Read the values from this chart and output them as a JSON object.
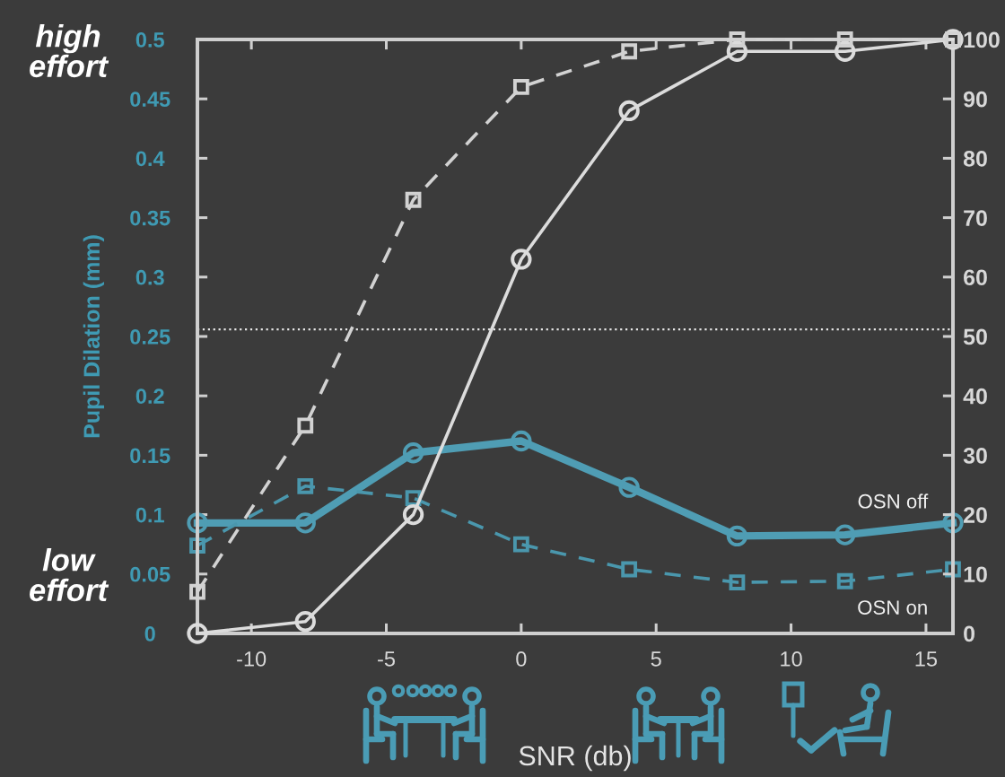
{
  "chart_data": {
    "type": "line",
    "xlabel": "SNR (db)",
    "ylabel": "Pupil Dilation (mm)",
    "annotations": [
      "high effort",
      "low effort"
    ],
    "x": [
      -12,
      -8,
      -4,
      0,
      4,
      8,
      12,
      16
    ],
    "series": [
      {
        "name": "OSN off",
        "color": "#4f9db4",
        "marker": "circle",
        "line_style": "solid",
        "values": [
          0.093,
          0.093,
          0.152,
          0.162,
          0.123,
          0.082,
          0.083,
          0.093
        ]
      },
      {
        "name": "OSN on",
        "color": "#4a97ad",
        "marker": "square",
        "line_style": "dashed",
        "values": [
          0.074,
          0.124,
          0.114,
          0.075,
          0.054,
          0.043,
          0.044,
          0.054
        ]
      },
      {
        "color": "#dcdcdc",
        "axis": "y2",
        "marker": "circle",
        "line_style": "solid",
        "values": [
          0,
          2,
          20,
          63,
          88,
          98,
          98,
          100
        ]
      },
      {
        "color": "#d2d2d2",
        "axis": "y2",
        "marker": "square",
        "line_style": "dashed",
        "values": [
          7,
          35,
          73,
          92,
          98,
          100,
          100,
          100
        ]
      }
    ],
    "xlim": [
      -12,
      16
    ],
    "xticks": [
      -10,
      -5,
      0,
      5,
      10,
      15
    ],
    "ylim": [
      0,
      0.5
    ],
    "yticks": [
      0,
      0.05,
      0.1,
      0.15,
      0.2,
      0.25,
      0.3,
      0.35,
      0.4,
      0.45,
      0.5
    ],
    "y2lim": [
      0,
      100
    ],
    "y2ticks": [
      0,
      10,
      20,
      30,
      40,
      50,
      60,
      70,
      80,
      90,
      100
    ],
    "ref_lines": [
      {
        "axis": "y",
        "value": 0.256,
        "color": "#e6e6e6",
        "line_style": "dotted"
      }
    ]
  }
}
